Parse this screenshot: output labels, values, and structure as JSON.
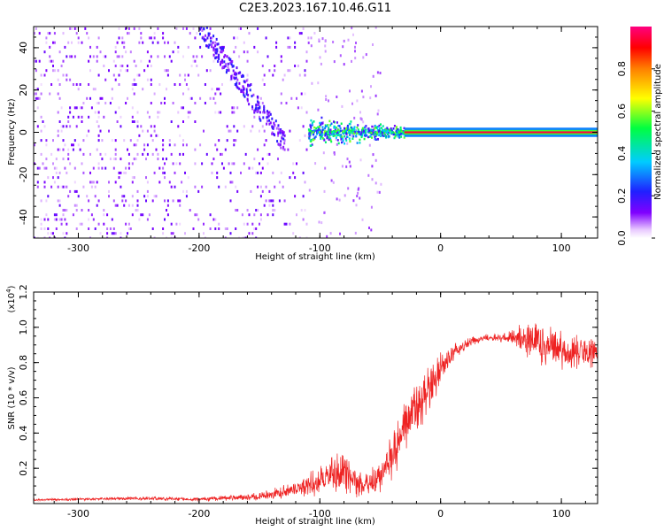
{
  "title": "C2E3.2023.167.10.46.G11",
  "colors": {
    "snr_line": "#ee2222",
    "axis": "#000000"
  },
  "chart_data": [
    {
      "type": "heatmap",
      "xlabel": "Height of straight line (km)",
      "ylabel": "Frequency (Hz)",
      "xlim": [
        -337,
        130
      ],
      "ylim": [
        -50,
        50
      ],
      "xticks": [
        -300,
        -200,
        -100,
        0,
        100
      ],
      "yticks": [
        -40,
        -20,
        0,
        20,
        40
      ],
      "colorbar": {
        "label": "Normalized spectral amplitude",
        "range": [
          0,
          1
        ],
        "ticks": [
          "0.0",
          "0.2",
          "0.4",
          "0.6",
          "0.8"
        ],
        "tick_values": [
          0,
          0.2,
          0.4,
          0.6,
          0.8
        ]
      },
      "grid": false,
      "regions": [
        {
          "name": "broadband-noise",
          "x": [
            -337,
            -110
          ],
          "freq": [
            -50,
            50
          ],
          "amplitude": 0.08
        },
        {
          "name": "diagonal-trace",
          "x": [
            -200,
            -130
          ],
          "freq": [
            -5,
            50
          ],
          "amplitude": 0.12
        },
        {
          "name": "transition-cloud",
          "x": [
            -110,
            -30
          ],
          "freq": [
            -8,
            8
          ],
          "amplitude": 0.3
        },
        {
          "name": "narrow-carrier",
          "x": [
            -30,
            130
          ],
          "freq": [
            -1,
            1
          ],
          "amplitude": 0.95
        }
      ]
    },
    {
      "type": "line",
      "xlabel": "Height of straight line (km)",
      "ylabel": "SNR (10 * v/v)",
      "y_multiplier": "(x10",
      "y_multiplier_exp": "4",
      "xlim": [
        -337,
        130
      ],
      "ylim": [
        0,
        1.2
      ],
      "xticks": [
        -300,
        -200,
        -100,
        0,
        100
      ],
      "yticks": [
        0.2,
        0.4,
        0.6,
        0.8,
        1.0,
        1.2
      ],
      "ytick_labels": [
        "0.2",
        "0.4",
        "0.6",
        "0.8",
        "1.0",
        "1.2"
      ],
      "grid": false,
      "series": [
        {
          "x": [
            -337,
            -250,
            -200,
            -150,
            -120,
            -100,
            -90,
            -80,
            -70,
            -60,
            -50,
            -40,
            -30,
            -20,
            -10,
            0,
            10,
            20,
            30,
            40,
            50,
            60,
            70,
            80,
            90,
            100,
            110,
            120,
            130
          ],
          "values": [
            0.02,
            0.03,
            0.025,
            0.04,
            0.08,
            0.13,
            0.17,
            0.18,
            0.12,
            0.1,
            0.16,
            0.27,
            0.42,
            0.55,
            0.65,
            0.76,
            0.85,
            0.9,
            0.93,
            0.94,
            0.94,
            0.94,
            0.92,
            0.9,
            0.88,
            0.87,
            0.86,
            0.86,
            0.86
          ],
          "noise": [
            0.005,
            0.01,
            0.01,
            0.02,
            0.04,
            0.07,
            0.09,
            0.1,
            0.07,
            0.06,
            0.09,
            0.12,
            0.15,
            0.15,
            0.12,
            0.08,
            0.05,
            0.03,
            0.02,
            0.02,
            0.02,
            0.04,
            0.1,
            0.12,
            0.11,
            0.1,
            0.09,
            0.08,
            0.07
          ]
        }
      ]
    }
  ]
}
